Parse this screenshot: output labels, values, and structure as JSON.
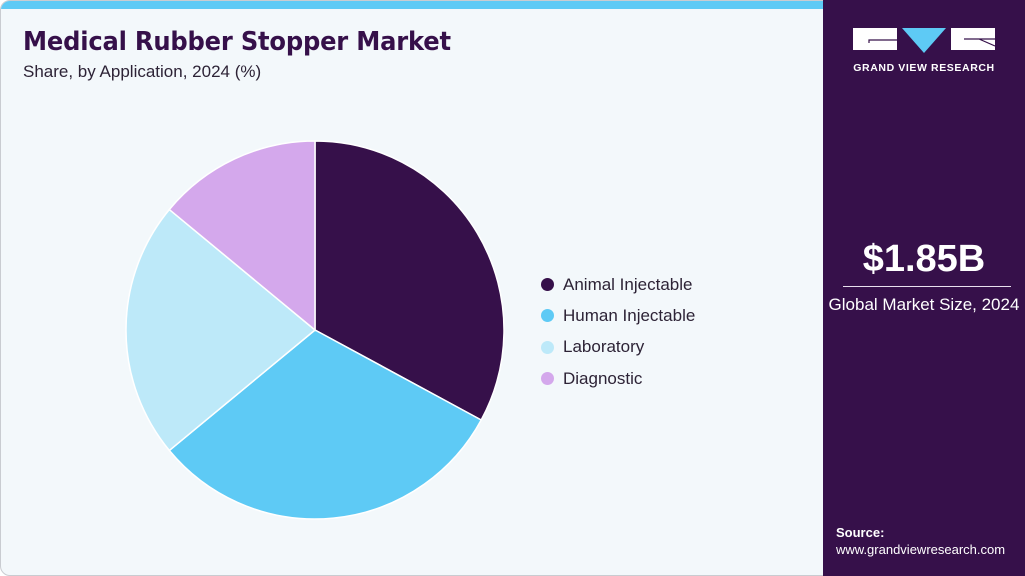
{
  "header": {
    "title": "Medical Rubber Stopper Market",
    "subtitle": "Share, by Application, 2024 (%)"
  },
  "chart_data": {
    "type": "pie",
    "title": "Medical Rubber Stopper Market",
    "subtitle": "Share, by Application, 2024 (%)",
    "categories": [
      "Animal Injectable",
      "Human Injectable",
      "Laboratory",
      "Diagnostic"
    ],
    "values": [
      32.9,
      31.1,
      22.0,
      14.0
    ],
    "colors": [
      "#36104a",
      "#5ecaf5",
      "#bde9f9",
      "#d4a8ec"
    ],
    "start_angle_deg": 0,
    "direction": "clockwise",
    "legend_position": "right",
    "data_labels": false
  },
  "legend": {
    "items": [
      {
        "label": "Animal Injectable",
        "color": "#36104a"
      },
      {
        "label": "Human Injectable",
        "color": "#5ecaf5"
      },
      {
        "label": "Laboratory",
        "color": "#bde9f9"
      },
      {
        "label": "Diagnostic",
        "color": "#d4a8ec"
      }
    ]
  },
  "sidebar": {
    "brand": "GRAND VIEW RESEARCH",
    "market_size_value": "$1.85B",
    "market_size_label": "Global Market Size, 2024",
    "source_label": "Source:",
    "source_url": "www.grandviewresearch.com"
  },
  "colors": {
    "brand_dark": "#36104a",
    "accent": "#5ecaf5",
    "background": "#f3f8fb"
  }
}
